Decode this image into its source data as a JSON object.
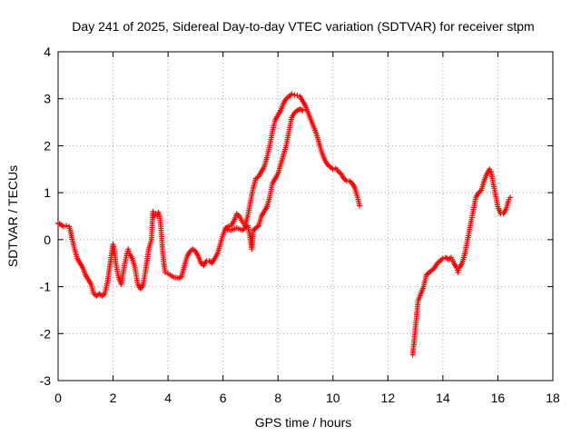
{
  "chart_data": {
    "type": "scatter",
    "title": "Day 241 of 2025, Sidereal Day-to-day VTEC variation (SDTVAR) for receiver stpm",
    "xlabel": "GPS time / hours",
    "ylabel": "SDTVAR / TECUs",
    "xlim": [
      0,
      18
    ],
    "ylim": [
      -3,
      4
    ],
    "xticks": [
      0,
      2,
      4,
      6,
      8,
      10,
      12,
      14,
      16,
      18
    ],
    "yticks": [
      -3,
      -2,
      -1,
      0,
      1,
      2,
      3,
      4
    ],
    "grid": true,
    "marker": "plus",
    "series": [
      {
        "name": "SDTVAR",
        "color": "#ff0000",
        "segments": [
          [
            [
              0.0,
              0.35
            ],
            [
              0.1,
              0.32
            ],
            [
              0.2,
              0.28
            ],
            [
              0.3,
              0.3
            ],
            [
              0.4,
              0.28
            ],
            [
              0.45,
              0.2
            ],
            [
              0.5,
              0.05
            ],
            [
              0.6,
              -0.2
            ],
            [
              0.7,
              -0.4
            ],
            [
              0.8,
              -0.5
            ],
            [
              0.9,
              -0.6
            ],
            [
              1.0,
              -0.75
            ],
            [
              1.1,
              -0.85
            ],
            [
              1.2,
              -0.95
            ],
            [
              1.3,
              -1.15
            ],
            [
              1.4,
              -1.2
            ],
            [
              1.5,
              -1.15
            ],
            [
              1.6,
              -1.2
            ],
            [
              1.7,
              -1.15
            ],
            [
              1.8,
              -0.9
            ],
            [
              1.9,
              -0.5
            ],
            [
              2.0,
              -0.1
            ],
            [
              2.05,
              -0.2
            ],
            [
              2.1,
              -0.5
            ],
            [
              2.2,
              -0.8
            ],
            [
              2.3,
              -0.95
            ],
            [
              2.4,
              -0.6
            ],
            [
              2.5,
              -0.3
            ],
            [
              2.55,
              -0.2
            ],
            [
              2.6,
              -0.3
            ],
            [
              2.7,
              -0.4
            ],
            [
              2.8,
              -0.6
            ],
            [
              2.9,
              -0.95
            ],
            [
              3.0,
              -1.05
            ],
            [
              3.1,
              -0.95
            ],
            [
              3.2,
              -0.6
            ],
            [
              3.3,
              -0.2
            ],
            [
              3.4,
              0.0
            ],
            [
              3.45,
              0.6
            ],
            [
              3.5,
              0.5
            ],
            [
              3.55,
              0.55
            ],
            [
              3.6,
              0.5
            ],
            [
              3.65,
              0.58
            ],
            [
              3.7,
              0.5
            ],
            [
              3.75,
              0.2
            ],
            [
              3.8,
              -0.2
            ],
            [
              3.85,
              -0.5
            ],
            [
              3.9,
              -0.7
            ],
            [
              4.0,
              -0.72
            ],
            [
              4.2,
              -0.8
            ],
            [
              4.4,
              -0.82
            ],
            [
              4.5,
              -0.78
            ],
            [
              4.6,
              -0.55
            ],
            [
              4.7,
              -0.35
            ],
            [
              4.8,
              -0.25
            ],
            [
              4.9,
              -0.2
            ],
            [
              5.0,
              -0.25
            ],
            [
              5.1,
              -0.35
            ],
            [
              5.2,
              -0.5
            ],
            [
              5.3,
              -0.55
            ],
            [
              5.4,
              -0.45
            ],
            [
              5.5,
              -0.45
            ],
            [
              5.6,
              -0.5
            ],
            [
              5.7,
              -0.4
            ],
            [
              5.8,
              -0.3
            ],
            [
              5.9,
              -0.1
            ],
            [
              6.0,
              0.1
            ],
            [
              6.1,
              0.25
            ],
            [
              6.2,
              0.28
            ],
            [
              6.3,
              0.3
            ],
            [
              6.4,
              0.4
            ],
            [
              6.5,
              0.55
            ],
            [
              6.6,
              0.5
            ],
            [
              6.7,
              0.38
            ],
            [
              6.8,
              0.3
            ],
            [
              6.9,
              0.5
            ],
            [
              7.0,
              0.8
            ],
            [
              7.1,
              1.1
            ],
            [
              7.2,
              1.3
            ],
            [
              7.3,
              1.35
            ],
            [
              7.4,
              1.45
            ],
            [
              7.5,
              1.55
            ],
            [
              7.6,
              1.75
            ],
            [
              7.7,
              2.0
            ],
            [
              7.8,
              2.3
            ],
            [
              7.9,
              2.55
            ],
            [
              8.0,
              2.65
            ],
            [
              8.1,
              2.75
            ],
            [
              8.2,
              2.9
            ],
            [
              8.3,
              3.0
            ],
            [
              8.4,
              3.05
            ],
            [
              8.5,
              3.1
            ],
            [
              8.6,
              3.08
            ],
            [
              8.7,
              3.07
            ],
            [
              8.8,
              3.05
            ],
            [
              8.9,
              2.95
            ],
            [
              9.0,
              2.85
            ],
            [
              9.1,
              2.7
            ],
            [
              9.2,
              2.55
            ],
            [
              9.3,
              2.4
            ],
            [
              9.4,
              2.25
            ],
            [
              9.5,
              2.05
            ],
            [
              9.6,
              1.85
            ],
            [
              9.7,
              1.7
            ],
            [
              9.8,
              1.6
            ],
            [
              9.9,
              1.55
            ],
            [
              10.0,
              1.5
            ],
            [
              10.1,
              1.52
            ],
            [
              10.2,
              1.45
            ],
            [
              10.3,
              1.4
            ],
            [
              10.4,
              1.3
            ],
            [
              10.5,
              1.25
            ],
            [
              10.6,
              1.25
            ],
            [
              10.7,
              1.2
            ],
            [
              10.8,
              1.1
            ],
            [
              10.9,
              0.9
            ],
            [
              10.97,
              0.72
            ]
          ],
          [
            [
              6.1,
              0.22
            ],
            [
              6.3,
              0.2
            ],
            [
              6.5,
              0.25
            ],
            [
              6.7,
              0.2
            ],
            [
              6.9,
              0.3
            ],
            [
              7.0,
              0.0
            ],
            [
              7.05,
              -0.2
            ],
            [
              7.1,
              0.2
            ],
            [
              7.2,
              0.25
            ],
            [
              7.3,
              0.3
            ],
            [
              7.4,
              0.5
            ],
            [
              7.5,
              0.6
            ],
            [
              7.6,
              0.7
            ],
            [
              7.7,
              0.9
            ],
            [
              7.8,
              1.2
            ],
            [
              7.9,
              1.3
            ],
            [
              8.0,
              1.4
            ],
            [
              8.1,
              1.6
            ],
            [
              8.2,
              1.8
            ],
            [
              8.3,
              2.0
            ],
            [
              8.4,
              2.3
            ],
            [
              8.5,
              2.6
            ],
            [
              8.6,
              2.7
            ],
            [
              8.7,
              2.75
            ],
            [
              8.8,
              2.78
            ],
            [
              8.9,
              2.75
            ]
          ],
          [
            [
              12.9,
              -2.45
            ],
            [
              12.95,
              -2.2
            ],
            [
              13.0,
              -1.9
            ],
            [
              13.05,
              -1.6
            ],
            [
              13.1,
              -1.3
            ],
            [
              13.2,
              -1.15
            ],
            [
              13.3,
              -1.0
            ],
            [
              13.4,
              -0.75
            ],
            [
              13.5,
              -0.7
            ],
            [
              13.6,
              -0.65
            ],
            [
              13.7,
              -0.6
            ],
            [
              13.8,
              -0.5
            ],
            [
              13.9,
              -0.45
            ],
            [
              14.0,
              -0.4
            ],
            [
              14.1,
              -0.38
            ],
            [
              14.2,
              -0.42
            ],
            [
              14.3,
              -0.38
            ],
            [
              14.4,
              -0.5
            ],
            [
              14.5,
              -0.6
            ],
            [
              14.55,
              -0.7
            ],
            [
              14.6,
              -0.6
            ],
            [
              14.7,
              -0.5
            ],
            [
              14.8,
              -0.3
            ],
            [
              14.9,
              0.0
            ],
            [
              15.0,
              0.3
            ],
            [
              15.1,
              0.6
            ],
            [
              15.2,
              0.9
            ],
            [
              15.3,
              1.0
            ],
            [
              15.4,
              1.05
            ],
            [
              15.5,
              1.25
            ],
            [
              15.6,
              1.4
            ],
            [
              15.7,
              1.5
            ],
            [
              15.75,
              1.45
            ],
            [
              15.8,
              1.3
            ],
            [
              15.9,
              1.0
            ],
            [
              16.0,
              0.7
            ],
            [
              16.1,
              0.55
            ],
            [
              16.2,
              0.55
            ],
            [
              16.3,
              0.65
            ],
            [
              16.4,
              0.85
            ],
            [
              16.45,
              0.9
            ]
          ]
        ]
      }
    ]
  }
}
